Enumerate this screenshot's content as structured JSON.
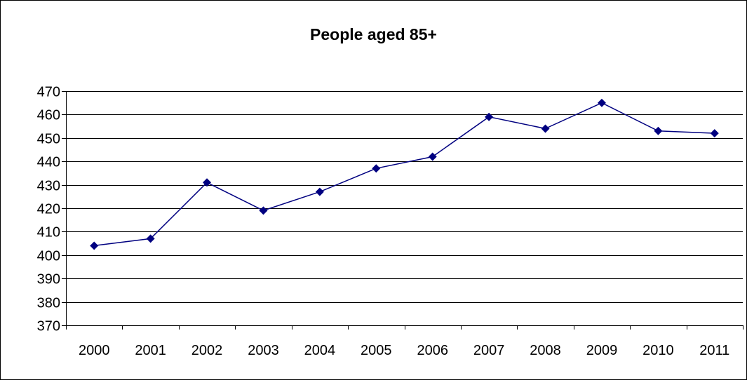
{
  "chart_data": {
    "type": "line",
    "title": "People aged 85+",
    "xlabel": "",
    "ylabel": "",
    "categories": [
      "2000",
      "2001",
      "2002",
      "2003",
      "2004",
      "2005",
      "2006",
      "2007",
      "2008",
      "2009",
      "2010",
      "2011"
    ],
    "series": [
      {
        "values": [
          404,
          407,
          431,
          419,
          427,
          437,
          442,
          459,
          454,
          465,
          453,
          452
        ],
        "color": "#000080",
        "marker": "diamond"
      }
    ],
    "ylim": [
      370,
      470
    ],
    "yticks": [
      370,
      380,
      390,
      400,
      410,
      420,
      430,
      440,
      450,
      460,
      470
    ],
    "grid": "horizontal",
    "legend": "none"
  }
}
